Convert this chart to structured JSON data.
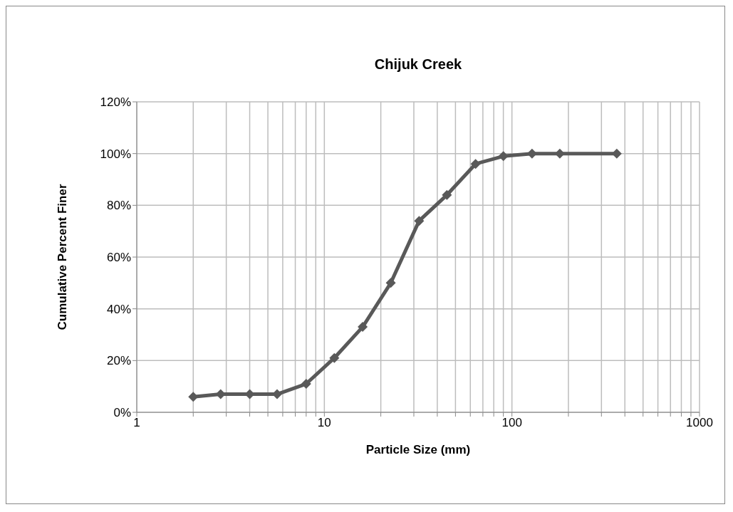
{
  "chart_data": {
    "type": "line",
    "title": "Chijuk Creek",
    "xlabel": "Particle Size (mm)",
    "ylabel": "Cumulative Percent Finer",
    "x": [
      2,
      2.8,
      4,
      5.6,
      8,
      11.3,
      16,
      22.6,
      32,
      45,
      64,
      90,
      128,
      180,
      362
    ],
    "series": [
      {
        "color": "#595959",
        "values": [
          6,
          7,
          7,
          7,
          11,
          21,
          33,
          50,
          74,
          84,
          96,
          99,
          100,
          100,
          100
        ]
      }
    ],
    "log": "x",
    "xlim": [
      1,
      1000
    ],
    "xticks": [
      1,
      {
        "value": 2,
        "label": null
      },
      {
        "value": 3,
        "label": null
      },
      {
        "value": 4,
        "label": null
      },
      {
        "value": 5,
        "label": null
      },
      {
        "value": 6,
        "label": null
      },
      {
        "value": 7,
        "label": null
      },
      {
        "value": 8,
        "label": null
      },
      {
        "value": 9,
        "label": null
      },
      10,
      {
        "value": 20,
        "label": null
      },
      {
        "value": 30,
        "label": null
      },
      {
        "value": 40,
        "label": null
      },
      {
        "value": 50,
        "label": null
      },
      {
        "value": 60,
        "label": null
      },
      {
        "value": 70,
        "label": null
      },
      {
        "value": 80,
        "label": null
      },
      {
        "value": 90,
        "label": null
      },
      100,
      {
        "value": 200,
        "label": null
      },
      {
        "value": 300,
        "label": null
      },
      {
        "value": 400,
        "label": null
      },
      {
        "value": 500,
        "label": null
      },
      {
        "value": 600,
        "label": null
      },
      {
        "value": 700,
        "label": null
      },
      {
        "value": 800,
        "label": null
      },
      {
        "value": 900,
        "label": null
      },
      1000
    ],
    "ylim": [
      0,
      120
    ],
    "yticks": [
      {
        "value": 0,
        "label": "0%"
      },
      {
        "value": 20,
        "label": "20%"
      },
      {
        "value": 40,
        "label": "40%"
      },
      {
        "value": 60,
        "label": "60%"
      },
      {
        "value": 80,
        "label": "80%"
      },
      {
        "value": 100,
        "label": "100%"
      },
      {
        "value": 120,
        "label": "120%"
      }
    ],
    "grid": true,
    "legend": false,
    "marker": "diamond",
    "line_style": "solid"
  }
}
